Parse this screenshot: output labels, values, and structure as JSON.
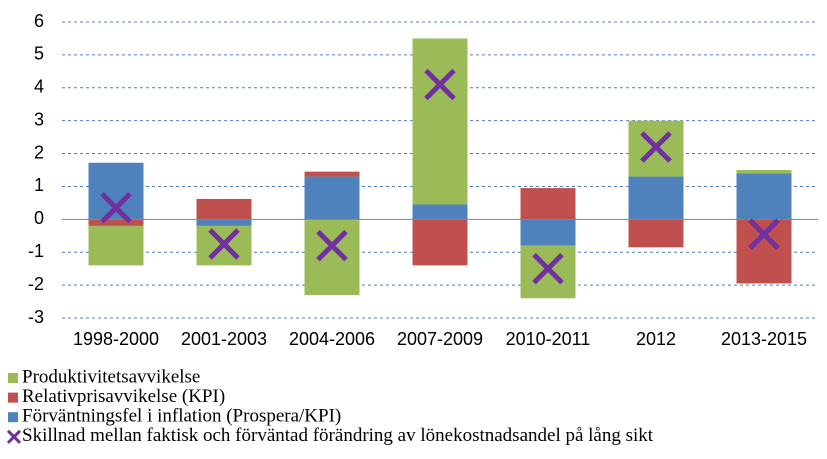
{
  "chart_data": {
    "type": "bar",
    "stacked": true,
    "categories": [
      "1998-2000",
      "2001-2003",
      "2004-2006",
      "2007-2009",
      "2010-2011",
      "2012",
      "2013-2015"
    ],
    "series": [
      {
        "name": "Produktivitetsavvikelse",
        "color": "#9bbb59",
        "values": [
          -1.2,
          -1.2,
          -2.3,
          5.05,
          -1.6,
          1.7,
          0.1
        ]
      },
      {
        "name": "Relativprisavvikelse (KPI)",
        "color": "#c0504d",
        "values": [
          -0.2,
          0.62,
          0.15,
          -1.4,
          0.95,
          -0.85,
          -1.95
        ]
      },
      {
        "name": "Förväntningsfel i inflation (Prospera/KPI)",
        "color": "#4f81bd",
        "values": [
          1.72,
          -0.2,
          1.3,
          0.45,
          -0.8,
          1.3,
          1.4
        ]
      },
      {
        "name": "Skillnad mellan faktisk och förväntad förändring av lönekostnadsandel på lång sikt",
        "color": "#7030a0",
        "type": "scatter",
        "marker": "x",
        "values": [
          0.35,
          -0.75,
          -0.8,
          4.1,
          -1.5,
          2.2,
          -0.45
        ]
      }
    ],
    "ylim": [
      -3,
      6
    ],
    "yticks": [
      -3,
      -2,
      -1,
      0,
      1,
      2,
      3,
      4,
      5,
      6
    ],
    "grid": true,
    "legend": "bottom"
  }
}
